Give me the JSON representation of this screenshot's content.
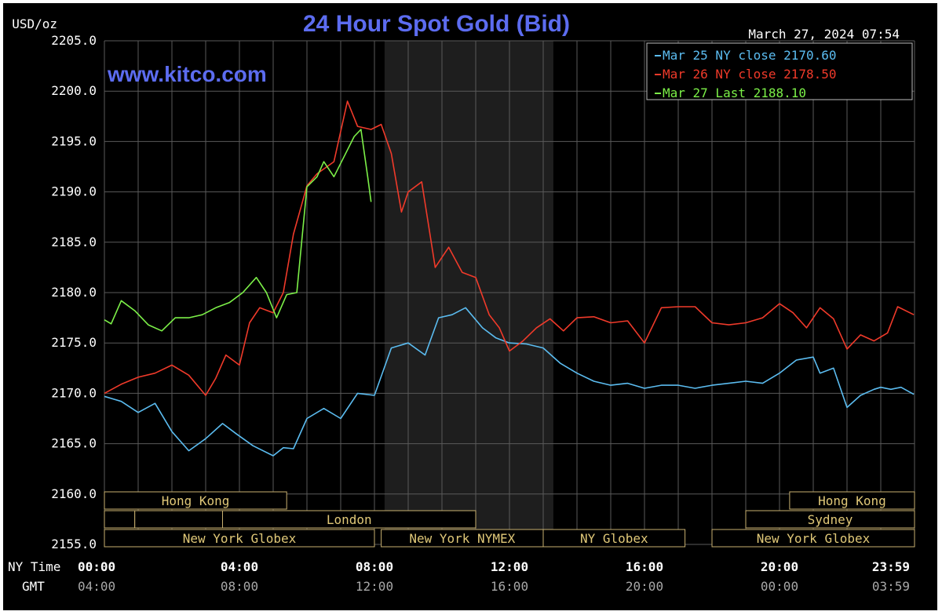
{
  "header": {
    "unit": "USD/oz",
    "title": "24 Hour Spot Gold (Bid)",
    "timestamp": "March 27, 2024 07:54",
    "watermark": "www.kitco.com"
  },
  "time_rows": {
    "ny_label": "NY Time",
    "gmt_label": "GMT",
    "ny_ticks": [
      "00:00",
      "04:00",
      "08:00",
      "12:00",
      "16:00",
      "20:00",
      "23:59"
    ],
    "gmt_ticks": [
      "04:00",
      "08:00",
      "12:00",
      "16:00",
      "20:00",
      "00:00",
      "03:59"
    ]
  },
  "sessions": [
    {
      "name": "Hong Kong",
      "start": 0,
      "end": 5.4,
      "row": 0
    },
    {
      "name": "",
      "start": 0,
      "end": 0.9,
      "row": 1
    },
    {
      "name": "",
      "start": 0.9,
      "end": 3.5,
      "row": 1
    },
    {
      "name": "London",
      "start": 3.5,
      "end": 11.0,
      "row": 1
    },
    {
      "name": "New York Globex",
      "start": 0,
      "end": 8.0,
      "row": 2
    },
    {
      "name": "New York NYMEX",
      "start": 8.2,
      "end": 13.0,
      "row": 2
    },
    {
      "name": "NY Globex",
      "start": 13.0,
      "end": 17.2,
      "row": 2
    },
    {
      "name": "New York Globex",
      "start": 18.0,
      "end": 24,
      "row": 2
    },
    {
      "name": "Sydney",
      "start": 19.0,
      "end": 24,
      "row": 1
    },
    {
      "name": "Hong Kong",
      "start": 20.3,
      "end": 24,
      "row": 0
    }
  ],
  "colors": {
    "background": "#000000",
    "grid": "#5a5a5a",
    "shade": "#1e1e1e",
    "axis_text": "#ffffff",
    "gmt_text": "#a8a8a8",
    "title": "#5c6cf0",
    "session_border": "#c8b070",
    "session_text": "#e0c878",
    "legend_border": "#bbbbbb"
  },
  "chart_data": {
    "type": "line",
    "title": "24 Hour Spot Gold (Bid)",
    "ylabel": "USD/oz",
    "xlim": [
      0,
      24
    ],
    "ylim": [
      2155,
      2205
    ],
    "yticks": [
      2155.0,
      2160.0,
      2165.0,
      2170.0,
      2175.0,
      2180.0,
      2185.0,
      2190.0,
      2195.0,
      2200.0,
      2205.0
    ],
    "nymex_shade": [
      8.3,
      13.3
    ],
    "legend_placement": "top-right",
    "series": [
      {
        "name": "Mar 25 NY close 2170.60",
        "color": "#5bbcf0",
        "x": [
          0,
          0.5,
          1,
          1.5,
          2,
          2.5,
          3,
          3.5,
          3.9,
          4.4,
          5,
          5.3,
          5.6,
          6,
          6.5,
          7,
          7.5,
          8,
          8.5,
          9,
          9.5,
          9.9,
          10.3,
          10.7,
          11.2,
          11.6,
          12,
          12.5,
          13,
          13.5,
          14,
          14.5,
          15,
          15.5,
          16,
          16.5,
          17,
          17.5,
          18,
          18.5,
          19,
          19.5,
          20,
          20.5,
          21,
          21.2,
          21.6,
          22,
          22.4,
          22.8,
          23,
          23.3,
          23.6,
          23.98
        ],
        "y": [
          2169.7,
          2169.2,
          2168.1,
          2169.0,
          2166.2,
          2164.3,
          2165.5,
          2167.0,
          2166.0,
          2164.8,
          2163.8,
          2164.6,
          2164.5,
          2167.5,
          2168.5,
          2167.5,
          2170.0,
          2169.8,
          2174.5,
          2175.0,
          2173.8,
          2177.5,
          2177.8,
          2178.5,
          2176.5,
          2175.5,
          2175.0,
          2174.9,
          2174.5,
          2173.0,
          2172.0,
          2171.2,
          2170.8,
          2171.0,
          2170.5,
          2170.8,
          2170.8,
          2170.5,
          2170.8,
          2171.0,
          2171.2,
          2171.0,
          2172.0,
          2173.3,
          2173.6,
          2172.0,
          2172.5,
          2168.6,
          2169.8,
          2170.4,
          2170.6,
          2170.4,
          2170.6,
          2169.9
        ]
      },
      {
        "name": "Mar 26 NY close 2178.50",
        "color": "#f03a2a",
        "x": [
          0,
          0.5,
          1,
          1.5,
          2,
          2.5,
          3,
          3.3,
          3.6,
          4,
          4.3,
          4.6,
          5,
          5.3,
          5.6,
          6,
          6.3,
          6.8,
          7.2,
          7.5,
          7.9,
          8.2,
          8.5,
          8.8,
          9,
          9.4,
          9.8,
          10.2,
          10.6,
          11,
          11.4,
          11.7,
          12,
          12.4,
          12.8,
          13.2,
          13.6,
          14,
          14.5,
          15,
          15.5,
          16,
          16.5,
          17,
          17.5,
          18,
          18.5,
          19,
          19.5,
          20,
          20.4,
          20.8,
          21.2,
          21.6,
          22,
          22.4,
          22.8,
          23.2,
          23.5,
          23.98
        ],
        "y": [
          2170.0,
          2170.9,
          2171.6,
          2172.0,
          2172.8,
          2171.8,
          2169.8,
          2171.5,
          2173.8,
          2172.8,
          2177.0,
          2178.5,
          2178.0,
          2180.0,
          2185.8,
          2190.6,
          2191.8,
          2193.0,
          2199.0,
          2196.5,
          2196.2,
          2196.7,
          2193.8,
          2188.0,
          2190.0,
          2191.0,
          2182.5,
          2184.5,
          2182.0,
          2181.5,
          2177.8,
          2176.5,
          2174.2,
          2175.2,
          2176.5,
          2177.4,
          2176.2,
          2177.5,
          2177.6,
          2177.0,
          2177.2,
          2175.0,
          2178.5,
          2178.6,
          2178.6,
          2177.0,
          2176.8,
          2177.0,
          2177.5,
          2178.9,
          2178.0,
          2176.5,
          2178.5,
          2177.4,
          2174.4,
          2175.8,
          2175.2,
          2176.0,
          2178.6,
          2177.8
        ]
      },
      {
        "name": "Mar 27 Last 2188.10",
        "color": "#7cf048",
        "x": [
          0,
          0.2,
          0.5,
          0.9,
          1.3,
          1.7,
          2.1,
          2.5,
          2.9,
          3.3,
          3.7,
          4.1,
          4.5,
          4.8,
          5.1,
          5.4,
          5.7,
          6.0,
          6.3,
          6.5,
          6.8,
          7.1,
          7.4,
          7.6,
          7.8,
          7.9
        ],
        "y": [
          2177.3,
          2176.9,
          2179.2,
          2178.2,
          2176.8,
          2176.2,
          2177.5,
          2177.5,
          2177.8,
          2178.5,
          2179.0,
          2180.0,
          2181.5,
          2180.0,
          2177.5,
          2179.8,
          2180.0,
          2190.5,
          2191.5,
          2193.0,
          2191.5,
          2193.5,
          2195.5,
          2196.2,
          2191.5,
          2189.0
        ]
      }
    ]
  }
}
